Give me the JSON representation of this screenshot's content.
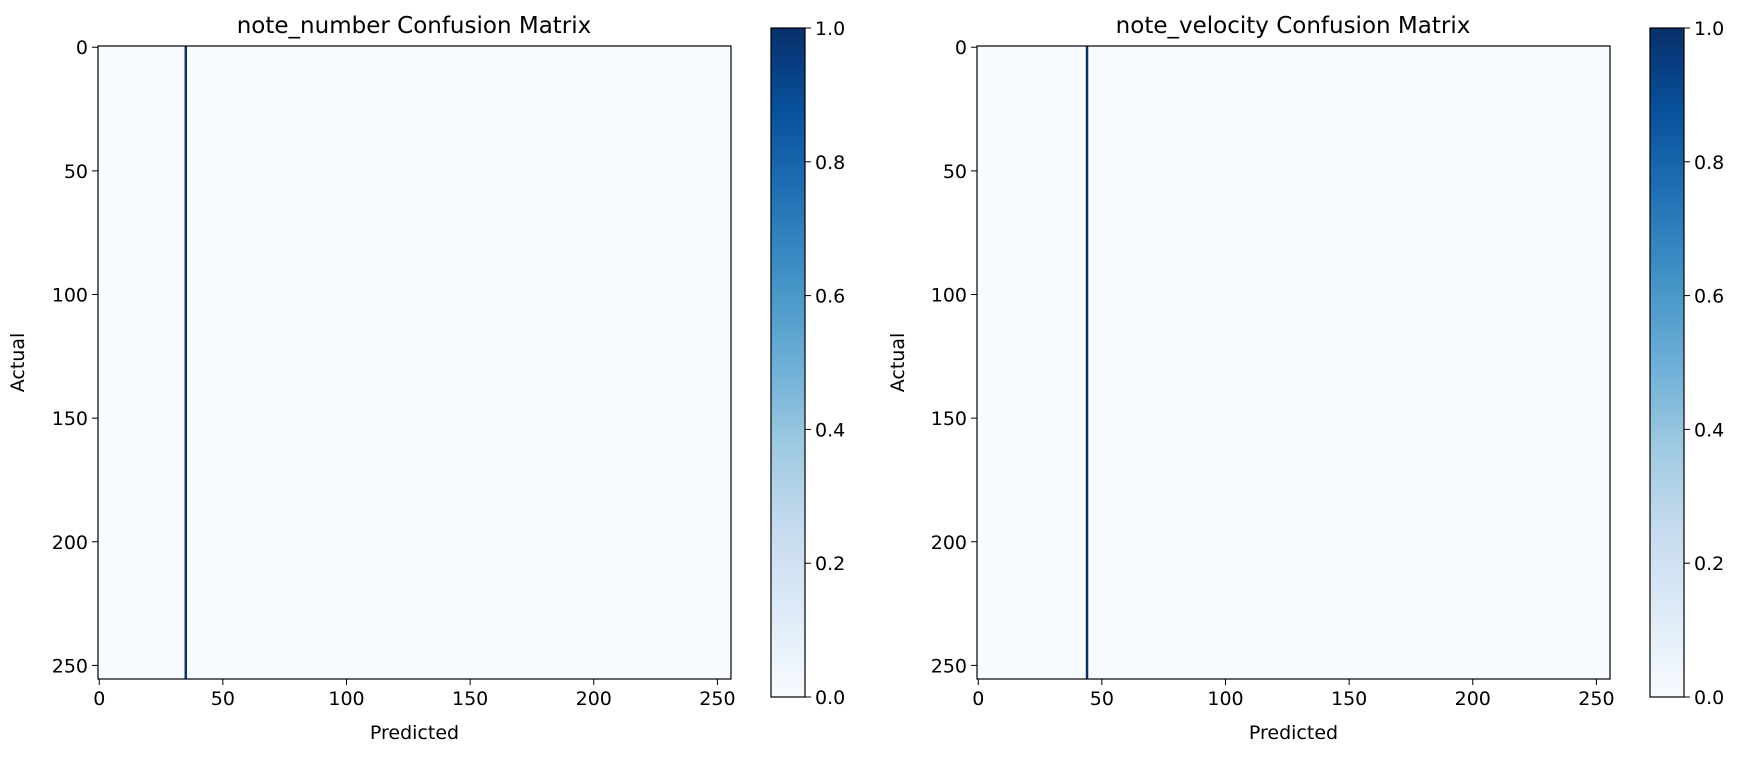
{
  "chart_data": [
    {
      "type": "heatmap",
      "title": "note_number Confusion Matrix",
      "xlabel": "Predicted",
      "ylabel": "Actual",
      "matrix_size": 256,
      "xlim": [
        0,
        255
      ],
      "ylim": [
        255,
        0
      ],
      "x_ticks": [
        "0",
        "50",
        "100",
        "150",
        "200",
        "250"
      ],
      "y_ticks": [
        "0",
        "50",
        "100",
        "150",
        "200",
        "250"
      ],
      "colormap": "Blues",
      "colorbar": {
        "range": [
          0.0,
          1.0
        ],
        "ticks": [
          "0.0",
          "0.2",
          "0.4",
          "0.6",
          "0.8",
          "1.0"
        ]
      },
      "background_value": 0.0,
      "highlight_column": {
        "predicted": 35,
        "value": 1.0
      }
    },
    {
      "type": "heatmap",
      "title": "note_velocity Confusion Matrix",
      "xlabel": "Predicted",
      "ylabel": "Actual",
      "matrix_size": 256,
      "xlim": [
        0,
        255
      ],
      "ylim": [
        255,
        0
      ],
      "x_ticks": [
        "0",
        "50",
        "100",
        "150",
        "200",
        "250"
      ],
      "y_ticks": [
        "0",
        "50",
        "100",
        "150",
        "200",
        "250"
      ],
      "colormap": "Blues",
      "colorbar": {
        "range": [
          0.0,
          1.0
        ],
        "ticks": [
          "0.0",
          "0.2",
          "0.4",
          "0.6",
          "0.8",
          "1.0"
        ]
      },
      "background_value": 0.0,
      "highlight_column": {
        "predicted": 44,
        "value": 1.0
      }
    }
  ],
  "colors": {
    "low": "#f7fbff",
    "high": "#08306b",
    "colormap_stops": [
      "#f7fbff",
      "#deebf7",
      "#c6dbef",
      "#9ecae1",
      "#6baed6",
      "#4292c6",
      "#2171b5",
      "#08519c",
      "#08306b"
    ]
  }
}
